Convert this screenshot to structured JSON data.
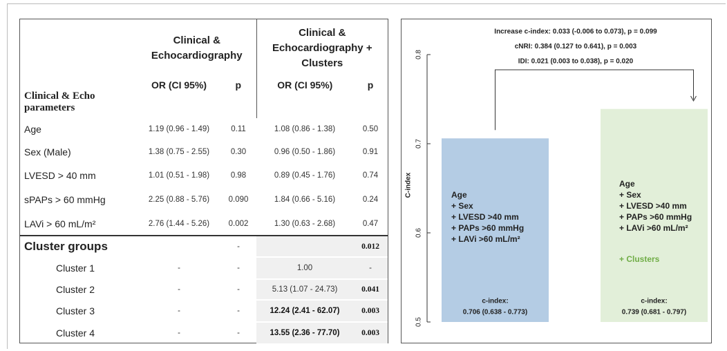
{
  "table": {
    "group_headers": [
      [
        "Clinical &",
        "Echocardiography"
      ],
      [
        "Clinical &",
        "Echocardiography +",
        "Clusters"
      ]
    ],
    "row_header": [
      "Clinical & Echo",
      "parameters"
    ],
    "sub_headers": [
      "OR (CI 95%)",
      "p",
      "OR (CI 95%)",
      "p"
    ],
    "rows": [
      [
        "Age",
        "1.19 (0.96 - 1.49)",
        "0.11",
        "1.08 (0.86 - 1.38)",
        "0.50"
      ],
      [
        "Sex (Male)",
        "1.38 (0.75 - 2.55)",
        "0.30",
        "0.96 (0.50 - 1.86)",
        "0.91"
      ],
      [
        "LVESD > 40 mm",
        "1.01 (0.51 - 1.98)",
        "0.98",
        "0.89 (0.45 - 1.76)",
        "0.74"
      ],
      [
        "sPAPs > 60 mmHg",
        "2.25 (0.88 - 5.76)",
        "0.090",
        "1.84 (0.66 - 5.16)",
        "0.24"
      ],
      [
        "LAVi > 60 mL/m²",
        "2.76 (1.44 - 5.26)",
        "0.002",
        "1.30 (0.63 - 2.68)",
        "0.47"
      ],
      [
        "Cluster groups",
        null,
        "-",
        null,
        "0.012"
      ],
      [
        "Cluster 1",
        "-",
        "-",
        "1.00",
        "-"
      ],
      [
        "Cluster 2",
        "-",
        "-",
        "5.13 (1.07 - 24.73)",
        "0.041"
      ],
      [
        "Cluster 3",
        "-",
        "-",
        "12.24 (2.41 - 62.07)",
        "0.003"
      ],
      [
        "Cluster 4",
        "-",
        "-",
        "13.55 (2.36 - 77.70)",
        "0.003"
      ]
    ]
  },
  "chart_data": {
    "type": "bar",
    "ylabel": "C-index",
    "annotations": [
      "Increase c-index: 0.033 (-0.006 to 0.073), p = 0.099",
      "cNRI: 0.384 (0.127 to 0.641), p = 0.003",
      "IDI: 0.021 (0.003 to 0.038), p = 0.020"
    ],
    "categories": [
      null,
      null
    ],
    "values": [
      0.706,
      0.739
    ],
    "value_labels": [
      "0.706 (0.638 - 0.773)",
      "0.739 (0.681 - 0.797)"
    ],
    "value_label_title": "c-index:",
    "colors": [
      "#b4cce4",
      "#e2efd9"
    ],
    "bar_labels": [
      [
        "Age",
        "+ Sex",
        "+ LVESD >40 mm",
        "+ PAPs >60 mmHg",
        "+ LAVi >60 mL/m²"
      ],
      [
        "Age",
        "+ Sex",
        "+ LVESD >40 mm",
        "+ PAPs >60 mmHg",
        "+ LAVi >60 mL/m²"
      ]
    ],
    "bar_extra_label": "+ Clusters",
    "extra_label_color": "#70ad47",
    "ylim": [
      0.5,
      0.8
    ],
    "yticks": [
      0.5,
      0.6,
      0.7,
      0.8
    ]
  }
}
